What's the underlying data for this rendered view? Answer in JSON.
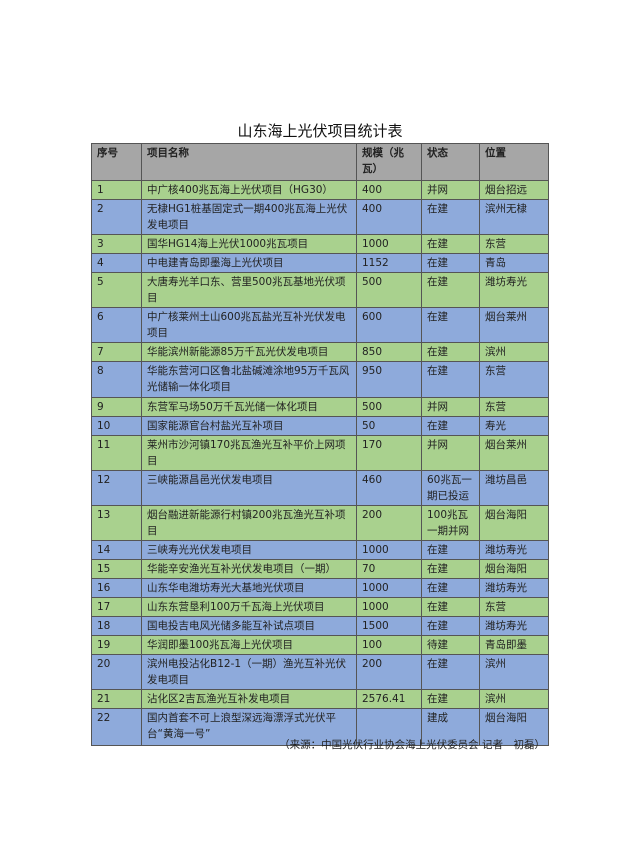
{
  "title": "山东海上光伏项目统计表",
  "headers": [
    "序号",
    "项目名称",
    "规模（兆瓦）",
    "状态",
    "位置"
  ],
  "colors": {
    "header": "#a6a6a6",
    "green_row": "#a9d18e",
    "blue_row": "#8eaadb"
  },
  "rows": [
    [
      "1",
      "中广核400兆瓦海上光伏项目（HG30）",
      "400",
      "并网",
      "烟台招远"
    ],
    [
      "2",
      "无棣HG1桩基固定式一期400兆瓦海上光伏发电项目",
      "400",
      "在建",
      "滨州无棣"
    ],
    [
      "3",
      "国华HG14海上光伏1000兆瓦项目",
      "1000",
      "在建",
      "东营"
    ],
    [
      "4",
      "中电建青岛即墨海上光伏项目",
      "1152",
      "在建",
      "青岛"
    ],
    [
      "5",
      "大唐寿光羊口东、营里500兆瓦基地光伏项目",
      "500",
      "在建",
      "潍坊寿光"
    ],
    [
      "6",
      "中广核莱州土山600兆瓦盐光互补光伏发电项目",
      "600",
      "在建",
      "烟台莱州"
    ],
    [
      "7",
      "华能滨州新能源85万千瓦光伏发电项目",
      "850",
      "在建",
      "滨州"
    ],
    [
      "8",
      "华能东营河口区鲁北盐碱滩涂地95万千瓦风光储输一体化项目",
      "950",
      "在建",
      "东营"
    ],
    [
      "9",
      "东营军马场50万千瓦光储一体化项目",
      "500",
      "并网",
      "东营"
    ],
    [
      "10",
      "国家能源官台村盐光互补项目",
      "50",
      "在建",
      "寿光"
    ],
    [
      "11",
      "莱州市沙河镇170兆瓦渔光互补平价上网项目",
      "170",
      "并网",
      "烟台莱州"
    ],
    [
      "12",
      "三峡能源昌邑光伏发电项目",
      "460",
      "60兆瓦一期已投运",
      "潍坊昌邑"
    ],
    [
      "13",
      "烟台融进新能源行村镇200兆瓦渔光互补项目",
      "200",
      "100兆瓦一期并网",
      "烟台海阳"
    ],
    [
      "14",
      "三峡寿光光伏发电项目",
      "1000",
      "在建",
      "潍坊寿光"
    ],
    [
      "15",
      "华能辛安渔光互补光伏发电项目（一期）",
      "70",
      "在建",
      "烟台海阳"
    ],
    [
      "16",
      "山东华电潍坊寿光大基地光伏项目",
      "1000",
      "在建",
      "潍坊寿光"
    ],
    [
      "17",
      "山东东营垦利100万千瓦海上光伏项目",
      "1000",
      "在建",
      "东营"
    ],
    [
      "18",
      "国电投吉电风光储多能互补试点项目",
      "1500",
      "在建",
      "潍坊寿光"
    ],
    [
      "19",
      "华润即墨100兆瓦海上光伏项目",
      "100",
      "待建",
      "青岛即墨"
    ],
    [
      "20",
      "滨州电投沾化B12-1（一期）渔光互补光伏发电项目",
      "200",
      "在建",
      "滨州"
    ],
    [
      "21",
      "沾化区2吉瓦渔光互补发电项目",
      "2576.41",
      "在建",
      "滨州"
    ],
    [
      "22",
      "国内首套不可上浪型深远海漂浮式光伏平台“黄海一号”",
      "",
      "建成",
      "烟台海阳"
    ]
  ],
  "source": "（来源：中国光伏行业协会海上光伏委员会 记者　初磊）"
}
